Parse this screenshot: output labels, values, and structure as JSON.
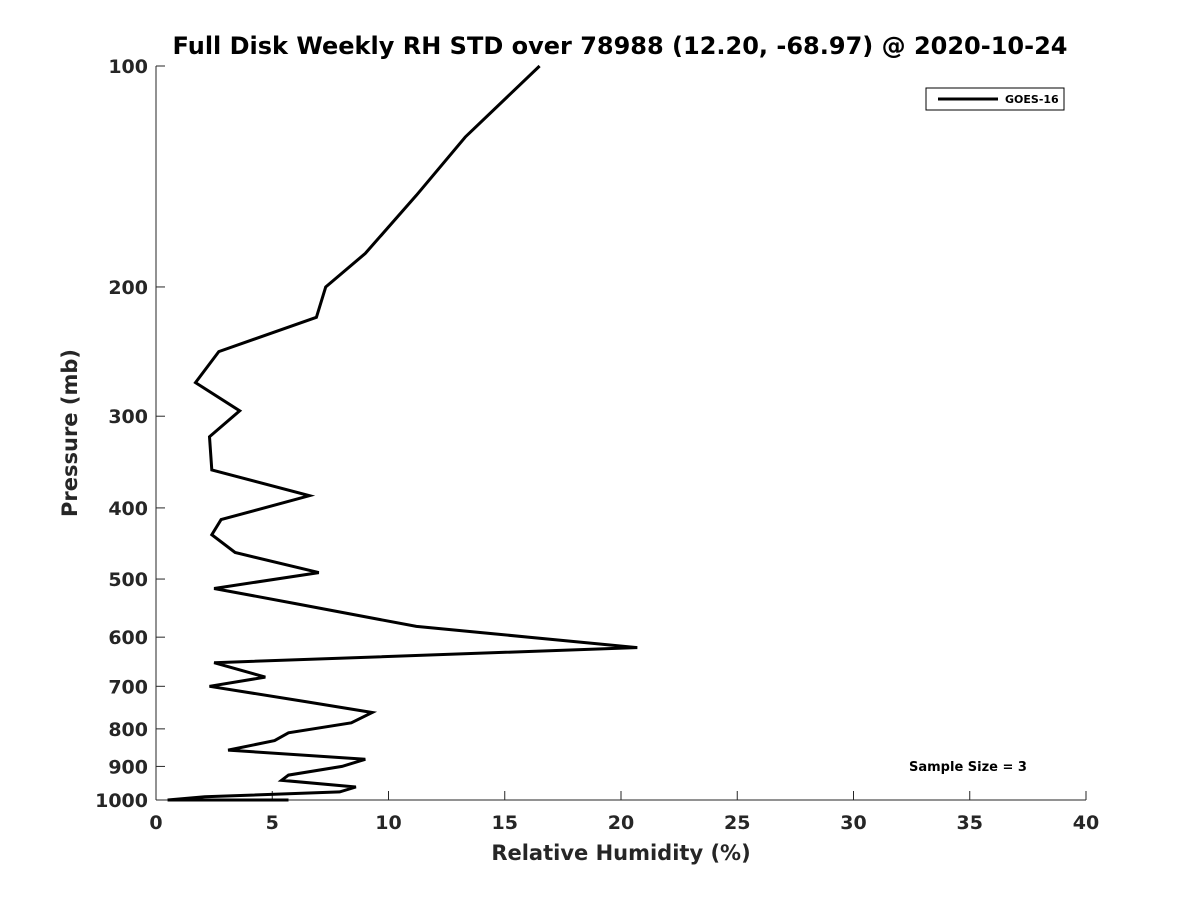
{
  "chart_data": {
    "type": "line",
    "title": "Full Disk Weekly RH STD over 78988 (12.20, -68.97) @ 2020-10-24",
    "xlabel": "Relative Humidity (%)",
    "ylabel": "Pressure (mb)",
    "xlim": [
      0,
      40
    ],
    "ylim": [
      100,
      1000
    ],
    "y_scale": "log",
    "y_reversed": true,
    "grid": false,
    "legend_position": "top-right",
    "x_ticks": [
      "0",
      "5",
      "10",
      "15",
      "20",
      "25",
      "30",
      "35",
      "40"
    ],
    "y_ticks": [
      "100",
      "200",
      "300",
      "400",
      "500",
      "600",
      "700",
      "800",
      "900",
      "1000"
    ],
    "annotation": "Sample Size = 3",
    "series": [
      {
        "name": "GOES-16",
        "color": "#000000",
        "points": [
          [
            16.5,
            100
          ],
          [
            13.3,
            125
          ],
          [
            11.2,
            150
          ],
          [
            9.0,
            180
          ],
          [
            7.3,
            200
          ],
          [
            6.9,
            220
          ],
          [
            2.7,
            245
          ],
          [
            1.7,
            270
          ],
          [
            3.6,
            295
          ],
          [
            2.3,
            320
          ],
          [
            2.4,
            355
          ],
          [
            6.6,
            385
          ],
          [
            2.8,
            415
          ],
          [
            2.4,
            435
          ],
          [
            3.4,
            460
          ],
          [
            7.0,
            490
          ],
          [
            2.5,
            515
          ],
          [
            6.0,
            540
          ],
          [
            11.2,
            580
          ],
          [
            20.7,
            620
          ],
          [
            2.5,
            650
          ],
          [
            4.7,
            680
          ],
          [
            2.3,
            700
          ],
          [
            6.5,
            735
          ],
          [
            9.3,
            760
          ],
          [
            8.4,
            785
          ],
          [
            5.7,
            810
          ],
          [
            5.1,
            830
          ],
          [
            3.1,
            855
          ],
          [
            9.0,
            880
          ],
          [
            8.0,
            900
          ],
          [
            5.7,
            925
          ],
          [
            5.4,
            940
          ],
          [
            8.6,
            960
          ],
          [
            7.9,
            975
          ],
          [
            2.1,
            990
          ],
          [
            0.5,
            1000
          ],
          [
            1.5,
            1000
          ],
          [
            0.9,
            1000
          ],
          [
            1.6,
            1000
          ],
          [
            5.7,
            1000
          ],
          [
            4.7,
            1000
          ],
          [
            2.4,
            1000
          ],
          [
            5.2,
            1000
          ]
        ]
      }
    ]
  }
}
